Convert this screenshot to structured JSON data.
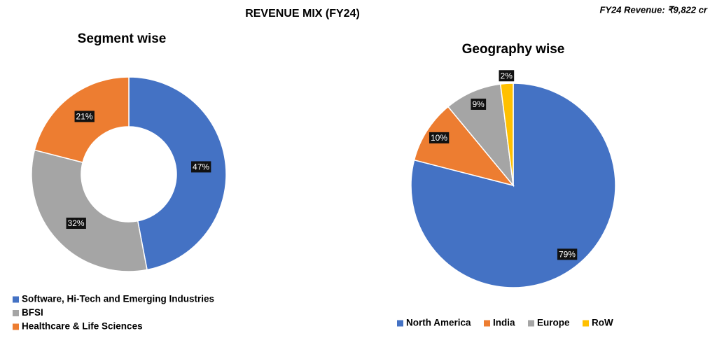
{
  "header": {
    "title": "REVENUE MIX (FY24)",
    "note": "FY24 Revenue: ₹9,822 cr"
  },
  "chart_data": [
    {
      "type": "donut",
      "title": "Segment wise",
      "categories": [
        "Software, Hi-Tech and Emerging Industries",
        "BFSI",
        "Healthcare & Life Sciences"
      ],
      "values": [
        47,
        32,
        21
      ],
      "value_labels": [
        "47%",
        "32%",
        "21%"
      ],
      "colors": [
        "#4472c4",
        "#a5a5a5",
        "#ed7d31"
      ],
      "legend": "bottom-left"
    },
    {
      "type": "pie",
      "title": "Geography wise",
      "categories": [
        "North America",
        "India",
        "Europe",
        "RoW"
      ],
      "values": [
        79,
        10,
        9,
        2
      ],
      "value_labels": [
        "79%",
        "10%",
        "9%",
        "2%"
      ],
      "colors": [
        "#4472c4",
        "#ed7d31",
        "#a5a5a5",
        "#ffc000"
      ],
      "legend": "bottom"
    }
  ]
}
